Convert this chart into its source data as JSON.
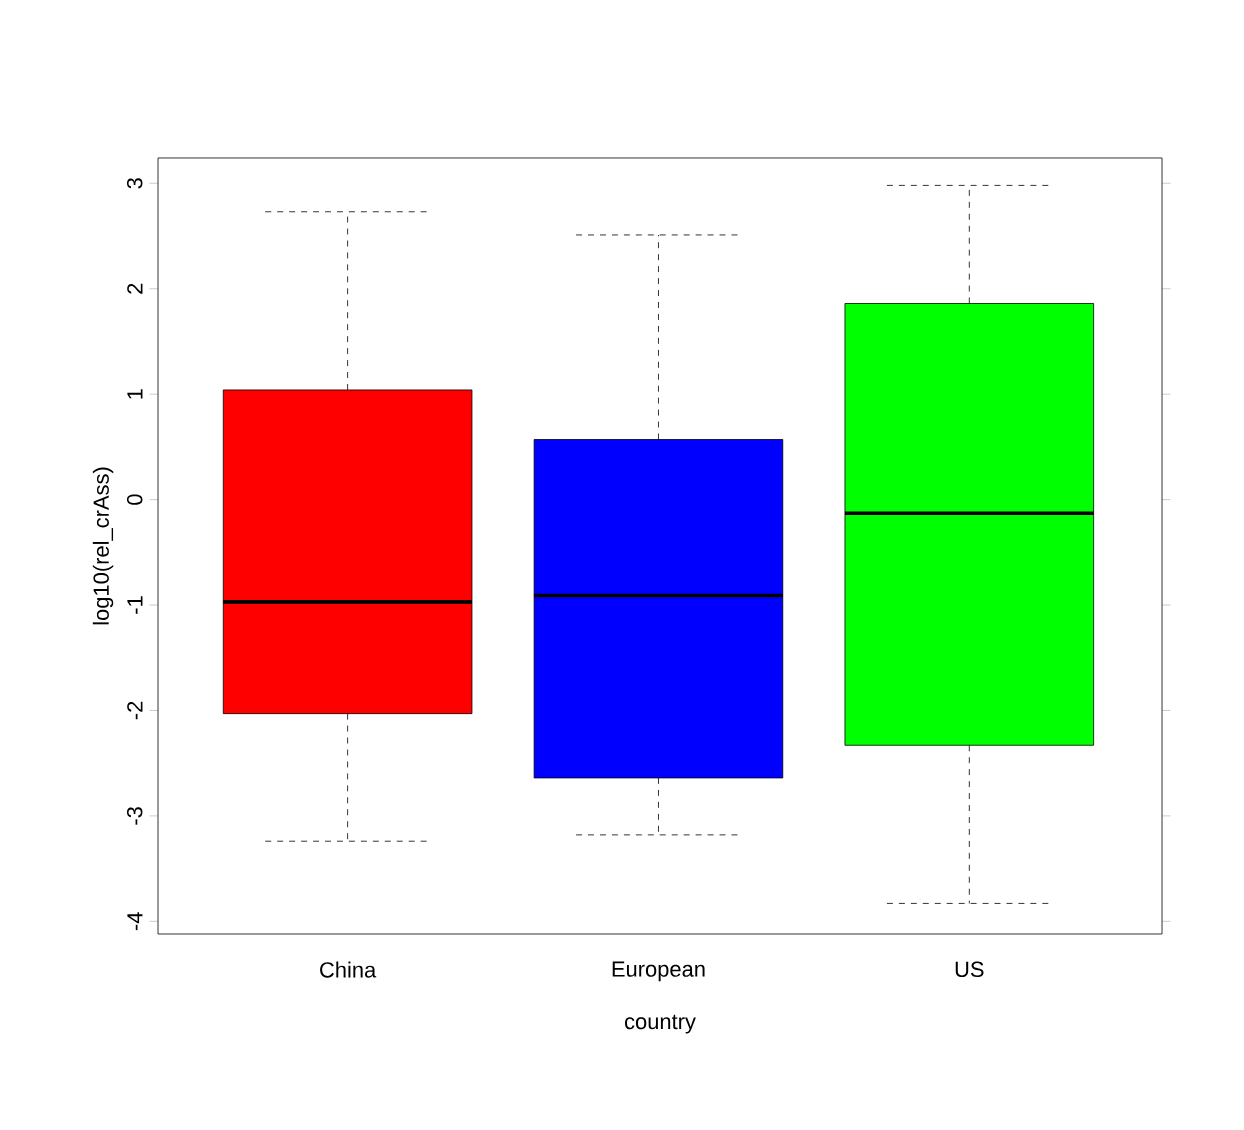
{
  "chart_data": {
    "type": "box",
    "categories": [
      "China",
      "European",
      "US"
    ],
    "boxes": [
      {
        "low": -3.24,
        "q1": -2.03,
        "median": -0.97,
        "q3": 1.04,
        "high": 2.73
      },
      {
        "low": -3.18,
        "q1": -2.64,
        "median": -0.91,
        "q3": 0.57,
        "high": 2.51
      },
      {
        "low": -3.83,
        "q1": -2.33,
        "median": -0.13,
        "q3": 1.86,
        "high": 2.98
      }
    ],
    "colors": [
      "#ff0000",
      "#0000ff",
      "#00ff00"
    ],
    "xlabel": "country",
    "ylabel": "log10(rel_crAss)",
    "ylim": [
      -4.12,
      3.24
    ],
    "yticks": [
      -4,
      -3,
      -2,
      -1,
      0,
      1,
      2,
      3
    ]
  }
}
